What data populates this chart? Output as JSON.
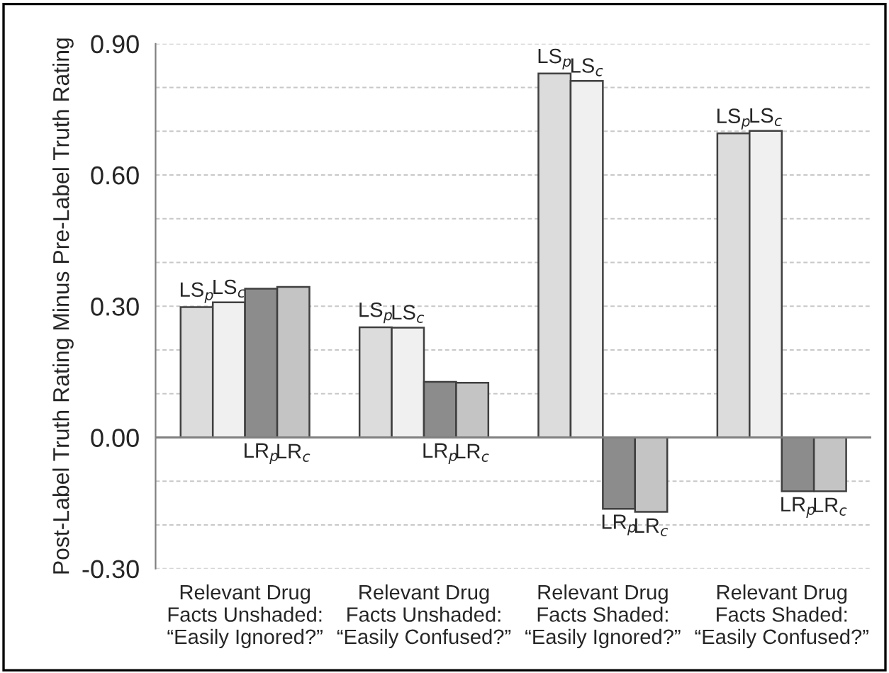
{
  "chart_data": {
    "type": "bar",
    "ylabel": "Post-Label Truth Rating Minus Pre-Label Truth Rating",
    "categories": [
      "Relevant Drug\nFacts Unshaded:\n“Easily Ignored?”",
      "Relevant Drug\nFacts Unshaded:\n“Easily Confused?”",
      "Relevant Drug\nFacts Shaded:\n“Easily Ignored?”",
      "Relevant Drug\nFacts Shaded:\n“Easily Confused?”"
    ],
    "series": [
      {
        "name": "LS$_{p}$",
        "color": "#dcdcdc",
        "values": [
          0.298,
          0.252,
          0.832,
          0.695
        ]
      },
      {
        "name": "LS$_{c}$",
        "color": "#f0f0f0",
        "values": [
          0.309,
          0.251,
          0.815,
          0.701
        ]
      },
      {
        "name": "LR$_{p}$",
        "color": "#8c8c8c",
        "values": [
          0.34,
          0.127,
          -0.163,
          -0.123
        ]
      },
      {
        "name": "LR$_{c}$",
        "color": "#c4c4c4",
        "values": [
          0.344,
          0.125,
          -0.17,
          -0.123
        ]
      }
    ],
    "ylim": [
      -0.3,
      0.9
    ],
    "yticks": [
      {
        "value": -0.3,
        "label": "-0.30"
      },
      {
        "value": -0.2,
        "label": null
      },
      {
        "value": -0.1,
        "label": null
      },
      {
        "value": 0,
        "label": "0.00"
      },
      {
        "value": 0.1,
        "label": null
      },
      {
        "value": 0.2,
        "label": null
      },
      {
        "value": 0.3,
        "label": "0.30"
      },
      {
        "value": 0.4,
        "label": null
      },
      {
        "value": 0.5,
        "label": null
      },
      {
        "value": 0.6,
        "label": "0.60"
      },
      {
        "value": 0.7,
        "label": null
      },
      {
        "value": 0.8,
        "label": null
      },
      {
        "value": 0.9,
        "label": "0.90"
      }
    ],
    "grid": "y",
    "legend": false
  }
}
